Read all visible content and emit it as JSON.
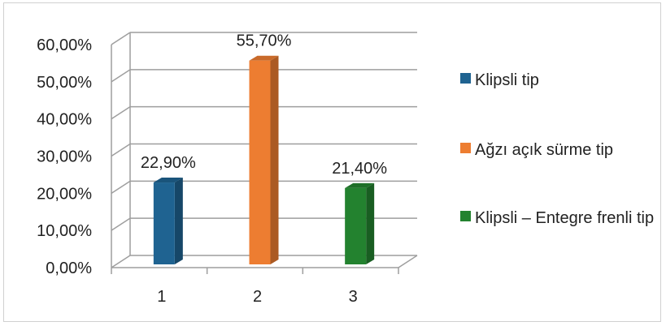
{
  "chart_data": {
    "type": "bar",
    "categories": [
      "1",
      "2",
      "3"
    ],
    "series": [
      {
        "name": "Klipsli tip",
        "values": [
          22.9,
          null,
          null
        ],
        "label": "22,90%",
        "color": "#1f6391"
      },
      {
        "name": "Ağzı açık sürme tip",
        "values": [
          null,
          55.7,
          null
        ],
        "label": "55,70%",
        "color": "#ed7d31"
      },
      {
        "name": "Klipsli – Entegre frenli tip",
        "values": [
          null,
          null,
          21.4
        ],
        "label": "21,40%",
        "color": "#23822f"
      }
    ],
    "y_ticks": [
      "0,00%",
      "10,00%",
      "20,00%",
      "30,00%",
      "40,00%",
      "50,00%",
      "60,00%"
    ],
    "ylim": [
      0,
      60
    ],
    "grid": true,
    "three_d": true,
    "legend_position": "right"
  }
}
